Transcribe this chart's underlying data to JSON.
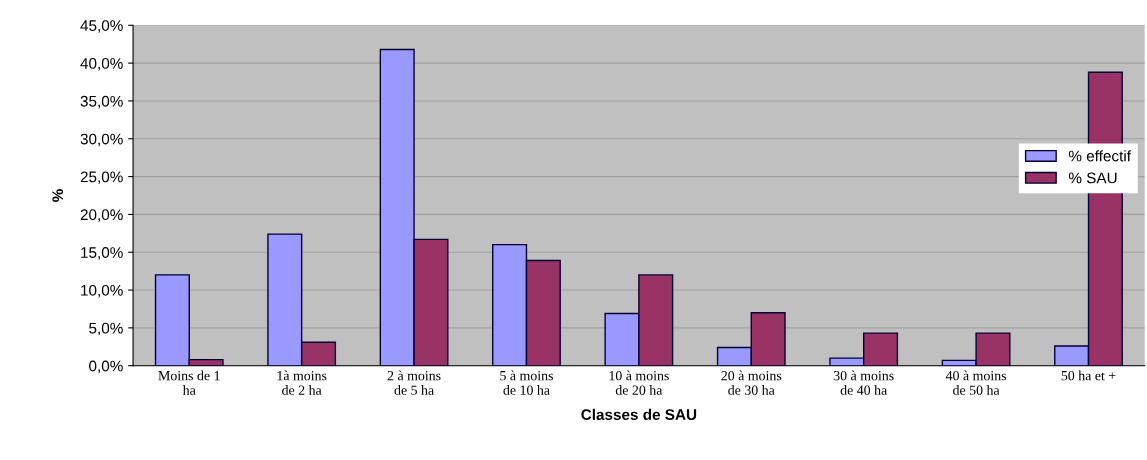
{
  "chart_data": {
    "type": "bar",
    "xlabel": "Classes de SAU",
    "ylabel": "%",
    "categories": [
      "Moins de 1\nha",
      "1à moins\nde 2 ha",
      "2 à moins\nde 5 ha",
      "5 à moins\nde 10 ha",
      "10 à moins\nde 20 ha",
      "20 à moins\nde 30 ha",
      "30 à moins\nde 40 ha",
      "40 à moins\nde 50 ha",
      "50 ha et +"
    ],
    "series": [
      {
        "name": "% effectif",
        "color": "#9999ff",
        "values": [
          12.0,
          17.4,
          41.8,
          16.0,
          6.9,
          2.4,
          1.0,
          0.7,
          2.6
        ]
      },
      {
        "name": "% SAU",
        "color": "#993366",
        "values": [
          0.8,
          3.1,
          16.7,
          13.9,
          12.0,
          7.0,
          4.3,
          4.3,
          38.8
        ]
      }
    ],
    "ylim": [
      0,
      45
    ],
    "yticks": [
      {
        "value": 0,
        "label": "0,0%"
      },
      {
        "value": 5,
        "label": "5,0%"
      },
      {
        "value": 10,
        "label": "10,0%"
      },
      {
        "value": 15,
        "label": "15,0%"
      },
      {
        "value": 20,
        "label": "20,0%"
      },
      {
        "value": 25,
        "label": "25,0%"
      },
      {
        "value": 30,
        "label": "30,0%"
      },
      {
        "value": 35,
        "label": "35,0%"
      },
      {
        "value": 40,
        "label": "40,0%"
      },
      {
        "value": 45,
        "label": "45,0%"
      }
    ],
    "grid": "y",
    "legend": "right"
  }
}
